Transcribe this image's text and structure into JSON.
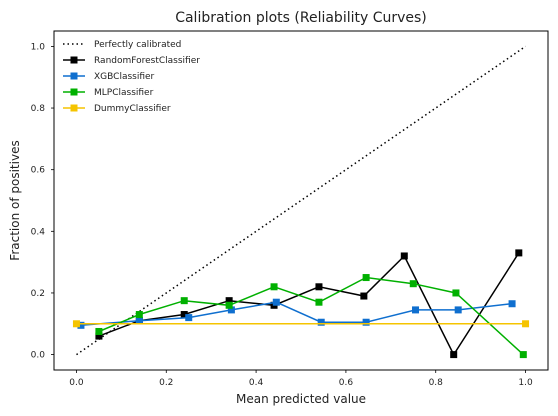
{
  "chart_data": {
    "type": "line",
    "title": "Calibration plots  (Reliability Curves)",
    "xlabel": "Mean predicted value",
    "ylabel": "Fraction of positives",
    "xlim": [
      -0.05,
      1.05
    ],
    "ylim": [
      -0.05,
      1.05
    ],
    "xticks": [
      "0.0",
      "0.2",
      "0.4",
      "0.6",
      "0.8",
      "1.0"
    ],
    "yticks": [
      "0.0",
      "0.2",
      "0.4",
      "0.6",
      "0.8",
      "1.0"
    ],
    "grid": false,
    "legend_position": "top-left",
    "series": [
      {
        "name": "Perfectly calibrated",
        "style": "dotted",
        "color": "#000000",
        "marker": "none",
        "x": [
          0.0,
          1.0
        ],
        "y": [
          0.0,
          1.0
        ]
      },
      {
        "name": "RandomForestClassifier",
        "style": "solid",
        "color": "#000000",
        "marker": "square",
        "x": [
          0.05,
          0.14,
          0.24,
          0.34,
          0.44,
          0.54,
          0.64,
          0.73,
          0.84,
          0.985
        ],
        "y": [
          0.06,
          0.11,
          0.13,
          0.175,
          0.16,
          0.22,
          0.19,
          0.32,
          0.0,
          0.33
        ]
      },
      {
        "name": "XGBClassifier",
        "style": "solid",
        "color": "#0f6fcf",
        "marker": "square",
        "x": [
          0.01,
          0.14,
          0.25,
          0.345,
          0.445,
          0.545,
          0.645,
          0.755,
          0.85,
          0.97
        ],
        "y": [
          0.095,
          0.11,
          0.12,
          0.145,
          0.17,
          0.105,
          0.105,
          0.145,
          0.145,
          0.165
        ]
      },
      {
        "name": "MLPClassifier",
        "style": "solid",
        "color": "#00b000",
        "marker": "square",
        "x": [
          0.05,
          0.14,
          0.24,
          0.34,
          0.44,
          0.54,
          0.645,
          0.75,
          0.845,
          0.995
        ],
        "y": [
          0.075,
          0.13,
          0.175,
          0.16,
          0.22,
          0.17,
          0.25,
          0.23,
          0.2,
          0.0
        ]
      },
      {
        "name": "DummyClassifier",
        "style": "solid",
        "color": "#f5c400",
        "marker": "square",
        "x": [
          0.0,
          1.0
        ],
        "y": [
          0.1,
          0.1
        ]
      }
    ]
  }
}
